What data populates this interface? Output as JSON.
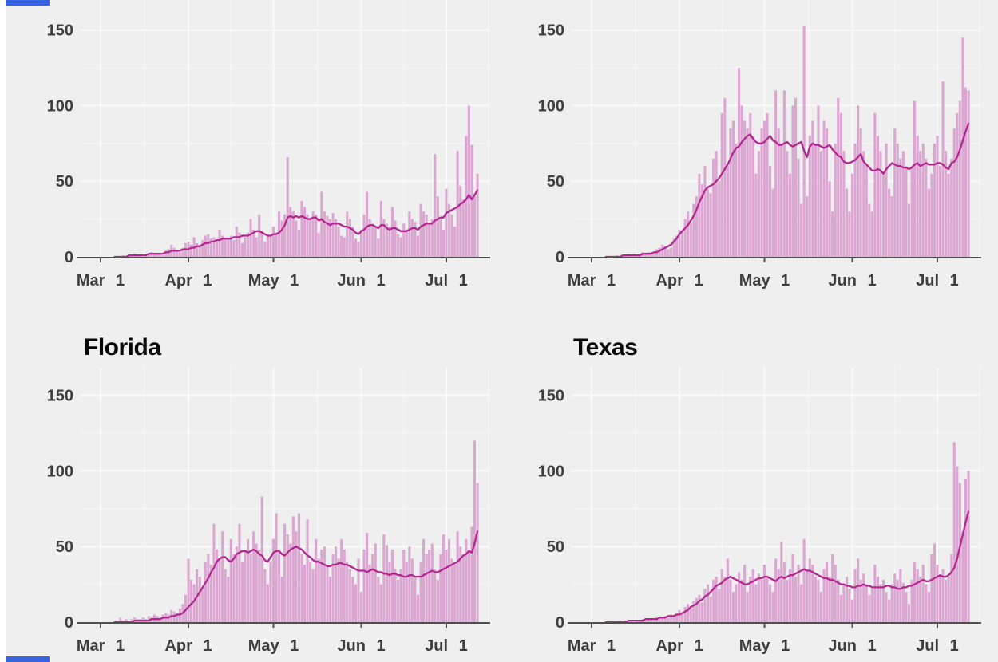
{
  "page": {
    "background_color": "#ffffff",
    "panel_color": "#f0eff0",
    "bar_color": "#dba7d2",
    "line_color": "#b42690",
    "axis_color": "#4f4f4f",
    "grid_major_color": "#fafafa",
    "grid_minor_color": "#f5f4f6",
    "label_color": "#3e3e3e",
    "title_color": "#070707",
    "clipped_fragment_color": "#3863e0"
  },
  "axis": {
    "y_ticks": [
      {
        "value": 0,
        "label": "0"
      },
      {
        "value": 50,
        "label": "50"
      },
      {
        "value": 100,
        "label": "100"
      },
      {
        "value": 150,
        "label": "150"
      }
    ],
    "y_minor": [
      25,
      75,
      125
    ],
    "x_ticks": [
      {
        "day": 0,
        "label": "Mar 1"
      },
      {
        "day": 31,
        "label": "Apr 1"
      },
      {
        "day": 61,
        "label": "May 1"
      },
      {
        "day": 92,
        "label": "Jun 1"
      },
      {
        "day": 122,
        "label": "Jul 1"
      }
    ],
    "x_minor_days": [
      15.5,
      46,
      76.5,
      107,
      137
    ],
    "start_date": "Mar 1",
    "end_date": "Jul 12"
  },
  "chart_data": [
    {
      "type": "bar",
      "title": null,
      "note": "top-left chart, title clipped off above screenshot; daily bars with 7-day average line, Mar 1 - Jul 12",
      "ylim": [
        0,
        170
      ],
      "bars": [
        0,
        0,
        0,
        0,
        0,
        0,
        0,
        0,
        1,
        0,
        1,
        1,
        2,
        1,
        1,
        0,
        2,
        2,
        3,
        2,
        2,
        2,
        1,
        4,
        5,
        8,
        6,
        4,
        3,
        5,
        9,
        10,
        8,
        13,
        9,
        7,
        11,
        14,
        15,
        12,
        13,
        10,
        18,
        14,
        12,
        12,
        14,
        11,
        20,
        16,
        9,
        13,
        16,
        25,
        18,
        13,
        28,
        17,
        10,
        15,
        14,
        20,
        16,
        30,
        24,
        28,
        66,
        33,
        30,
        24,
        18,
        37,
        33,
        28,
        26,
        30,
        28,
        16,
        43,
        30,
        27,
        25,
        29,
        25,
        20,
        14,
        13,
        30,
        25,
        20,
        12,
        10,
        18,
        28,
        43,
        25,
        22,
        20,
        12,
        37,
        25,
        22,
        20,
        33,
        24,
        15,
        13,
        22,
        18,
        30,
        25,
        23,
        14,
        35,
        30,
        28,
        22,
        25,
        68,
        40,
        25,
        18,
        45,
        35,
        28,
        20,
        70,
        47,
        38,
        80,
        100,
        74,
        40,
        55
      ],
      "avg": [
        null,
        null,
        null,
        null,
        null,
        0,
        0,
        0,
        0,
        0,
        1,
        1,
        1,
        1,
        1,
        1,
        1,
        2,
        2,
        2,
        2,
        2,
        2,
        3,
        3,
        4,
        4,
        4,
        4,
        5,
        5,
        5,
        6,
        6,
        7,
        7,
        8,
        9,
        9,
        10,
        10,
        11,
        11,
        12,
        12,
        12,
        12,
        13,
        13,
        13,
        14,
        14,
        14,
        15,
        16,
        17,
        17,
        16,
        15,
        14,
        14,
        15,
        15,
        16,
        18,
        21,
        26,
        27,
        26,
        27,
        26,
        27,
        26,
        25,
        25,
        26,
        26,
        24,
        25,
        23,
        22,
        21,
        22,
        22,
        22,
        21,
        20,
        20,
        19,
        18,
        16,
        15,
        17,
        18,
        20,
        21,
        21,
        20,
        19,
        21,
        21,
        19,
        18,
        19,
        19,
        18,
        17,
        17,
        17,
        18,
        19,
        19,
        18,
        20,
        21,
        22,
        22,
        22,
        24,
        25,
        26,
        26,
        29,
        30,
        31,
        32,
        33,
        35,
        36,
        38,
        41,
        38,
        41,
        44
      ]
    },
    {
      "type": "bar",
      "title": null,
      "note": "top-right chart, title clipped off above screenshot; daily bars with 7-day average line, Mar 1 - Jul 12; peak bar ~153 mid-May",
      "ylim": [
        0,
        170
      ],
      "bars": [
        0,
        0,
        0,
        0,
        0,
        0,
        0,
        0,
        0,
        1,
        0,
        1,
        1,
        2,
        1,
        2,
        1,
        2,
        3,
        2,
        3,
        3,
        2,
        5,
        6,
        8,
        7,
        5,
        6,
        12,
        14,
        18,
        16,
        25,
        30,
        22,
        35,
        40,
        55,
        48,
        60,
        45,
        42,
        65,
        70,
        50,
        95,
        105,
        60,
        85,
        90,
        75,
        125,
        100,
        90,
        85,
        95,
        80,
        55,
        70,
        85,
        90,
        95,
        60,
        45,
        110,
        85,
        75,
        110,
        70,
        55,
        100,
        105,
        65,
        35,
        153,
        40,
        80,
        90,
        75,
        100,
        70,
        90,
        85,
        50,
        30,
        75,
        105,
        95,
        70,
        45,
        30,
        55,
        75,
        100,
        85,
        70,
        60,
        35,
        30,
        95,
        80,
        70,
        55,
        75,
        45,
        40,
        85,
        75,
        65,
        70,
        60,
        35,
        60,
        103,
        80,
        70,
        75,
        65,
        45,
        55,
        75,
        80,
        60,
        116,
        70,
        55,
        65,
        85,
        95,
        103,
        145,
        112,
        110
      ],
      "avg": [
        null,
        null,
        null,
        null,
        null,
        0,
        0,
        0,
        0,
        0,
        0,
        1,
        1,
        1,
        1,
        1,
        1,
        1,
        2,
        2,
        2,
        2,
        3,
        3,
        4,
        5,
        6,
        7,
        8,
        10,
        12,
        15,
        17,
        19,
        21,
        24,
        27,
        31,
        36,
        40,
        44,
        46,
        47,
        48,
        50,
        52,
        55,
        58,
        61,
        65,
        69,
        72,
        73,
        76,
        78,
        80,
        81,
        78,
        76,
        75,
        75,
        76,
        78,
        80,
        77,
        76,
        74,
        74,
        75,
        76,
        74,
        73,
        74,
        75,
        76,
        70,
        66,
        73,
        75,
        74,
        74,
        73,
        72,
        73,
        74,
        71,
        69,
        67,
        66,
        63,
        62,
        62,
        63,
        64,
        66,
        68,
        63,
        61,
        59,
        57,
        57,
        58,
        57,
        55,
        58,
        60,
        62,
        61,
        60,
        60,
        59,
        59,
        58,
        59,
        61,
        62,
        60,
        61,
        62,
        61,
        61,
        61,
        62,
        62,
        61,
        59,
        58,
        62,
        63,
        66,
        71,
        77,
        83,
        88
      ]
    },
    {
      "type": "bar",
      "title": "Florida",
      "note": "bottom-left chart; daily bars with 7-day average line, Mar 1 - Jul 12; end spike ~120",
      "ylim": [
        0,
        170
      ],
      "bars": [
        0,
        0,
        0,
        0,
        0,
        1,
        0,
        3,
        1,
        2,
        1,
        2,
        3,
        2,
        2,
        3,
        2,
        4,
        3,
        5,
        4,
        3,
        5,
        6,
        5,
        8,
        7,
        6,
        9,
        12,
        18,
        42,
        28,
        25,
        35,
        30,
        22,
        40,
        45,
        38,
        65,
        48,
        42,
        60,
        35,
        30,
        55,
        45,
        50,
        65,
        40,
        48,
        55,
        45,
        60,
        52,
        48,
        83,
        35,
        25,
        40,
        55,
        72,
        48,
        30,
        65,
        58,
        52,
        70,
        60,
        72,
        45,
        38,
        68,
        40,
        35,
        55,
        42,
        48,
        50,
        38,
        30,
        45,
        50,
        42,
        55,
        48,
        40,
        35,
        30,
        25,
        42,
        20,
        48,
        59,
        38,
        45,
        52,
        30,
        25,
        58,
        51,
        40,
        48,
        35,
        28,
        35,
        48,
        40,
        50,
        42,
        30,
        18,
        40,
        55,
        45,
        48,
        52,
        35,
        28,
        45,
        58,
        48,
        55,
        42,
        38,
        60,
        50,
        45,
        55,
        48,
        63,
        120,
        92
      ],
      "avg": [
        null,
        null,
        null,
        null,
        null,
        0,
        0,
        0,
        0,
        0,
        0,
        0,
        1,
        1,
        1,
        1,
        1,
        1,
        2,
        2,
        2,
        2,
        3,
        3,
        3,
        4,
        4,
        5,
        5,
        6,
        8,
        10,
        12,
        14,
        17,
        20,
        23,
        26,
        29,
        33,
        36,
        40,
        42,
        43,
        43,
        41,
        40,
        42,
        45,
        46,
        47,
        47,
        46,
        47,
        48,
        47,
        45,
        44,
        41,
        40,
        43,
        46,
        47,
        47,
        45,
        44,
        46,
        48,
        49,
        50,
        49,
        48,
        46,
        44,
        43,
        41,
        40,
        40,
        39,
        38,
        37,
        37,
        38,
        38,
        39,
        39,
        38,
        38,
        37,
        36,
        35,
        34,
        34,
        34,
        33,
        34,
        35,
        34,
        33,
        33,
        32,
        32,
        31,
        32,
        32,
        31,
        31,
        30,
        30,
        31,
        31,
        30,
        30,
        30,
        31,
        32,
        33,
        34,
        33,
        33,
        34,
        35,
        36,
        37,
        38,
        39,
        40,
        42,
        44,
        45,
        47,
        46,
        52,
        60
      ]
    },
    {
      "type": "bar",
      "title": "Texas",
      "note": "bottom-right chart; daily bars with 7-day average line, Mar 1 - Jul 12; end spikes ~119 and ~100",
      "ylim": [
        0,
        170
      ],
      "bars": [
        0,
        0,
        0,
        0,
        0,
        0,
        0,
        0,
        0,
        0,
        1,
        0,
        1,
        1,
        1,
        0,
        1,
        1,
        2,
        1,
        2,
        2,
        1,
        3,
        2,
        3,
        4,
        3,
        5,
        4,
        6,
        8,
        6,
        10,
        12,
        9,
        14,
        16,
        18,
        13,
        22,
        25,
        17,
        28,
        30,
        22,
        35,
        30,
        42,
        28,
        20,
        25,
        33,
        28,
        38,
        20,
        30,
        35,
        25,
        32,
        28,
        38,
        30,
        25,
        20,
        42,
        35,
        53,
        40,
        28,
        35,
        45,
        30,
        38,
        25,
        55,
        35,
        42,
        38,
        30,
        28,
        20,
        35,
        40,
        30,
        45,
        38,
        28,
        18,
        25,
        30,
        22,
        15,
        35,
        42,
        28,
        32,
        25,
        18,
        22,
        38,
        30,
        25,
        28,
        20,
        15,
        25,
        32,
        28,
        35,
        26,
        20,
        12,
        28,
        40,
        35,
        30,
        38,
        25,
        20,
        45,
        52,
        38,
        30,
        35,
        28,
        30,
        45,
        119,
        103,
        92,
        60,
        95,
        100
      ],
      "avg": [
        null,
        null,
        null,
        null,
        null,
        0,
        0,
        0,
        0,
        0,
        0,
        0,
        0,
        1,
        1,
        1,
        1,
        1,
        1,
        2,
        2,
        2,
        2,
        2,
        3,
        3,
        3,
        4,
        4,
        4,
        5,
        5,
        6,
        7,
        8,
        10,
        11,
        12,
        14,
        15,
        17,
        18,
        20,
        22,
        24,
        25,
        26,
        28,
        29,
        30,
        29,
        28,
        27,
        26,
        25,
        25,
        26,
        27,
        28,
        29,
        29,
        30,
        30,
        29,
        28,
        27,
        29,
        30,
        29,
        30,
        31,
        31,
        32,
        33,
        34,
        35,
        34,
        34,
        33,
        32,
        31,
        30,
        29,
        29,
        28,
        28,
        27,
        26,
        25,
        25,
        24,
        24,
        23,
        23,
        24,
        24,
        25,
        24,
        24,
        23,
        23,
        23,
        23,
        23,
        24,
        24,
        23,
        23,
        22,
        22,
        23,
        23,
        24,
        24,
        25,
        26,
        27,
        28,
        27,
        27,
        28,
        29,
        30,
        31,
        30,
        30,
        31,
        33,
        36,
        42,
        50,
        58,
        66,
        73
      ]
    }
  ]
}
